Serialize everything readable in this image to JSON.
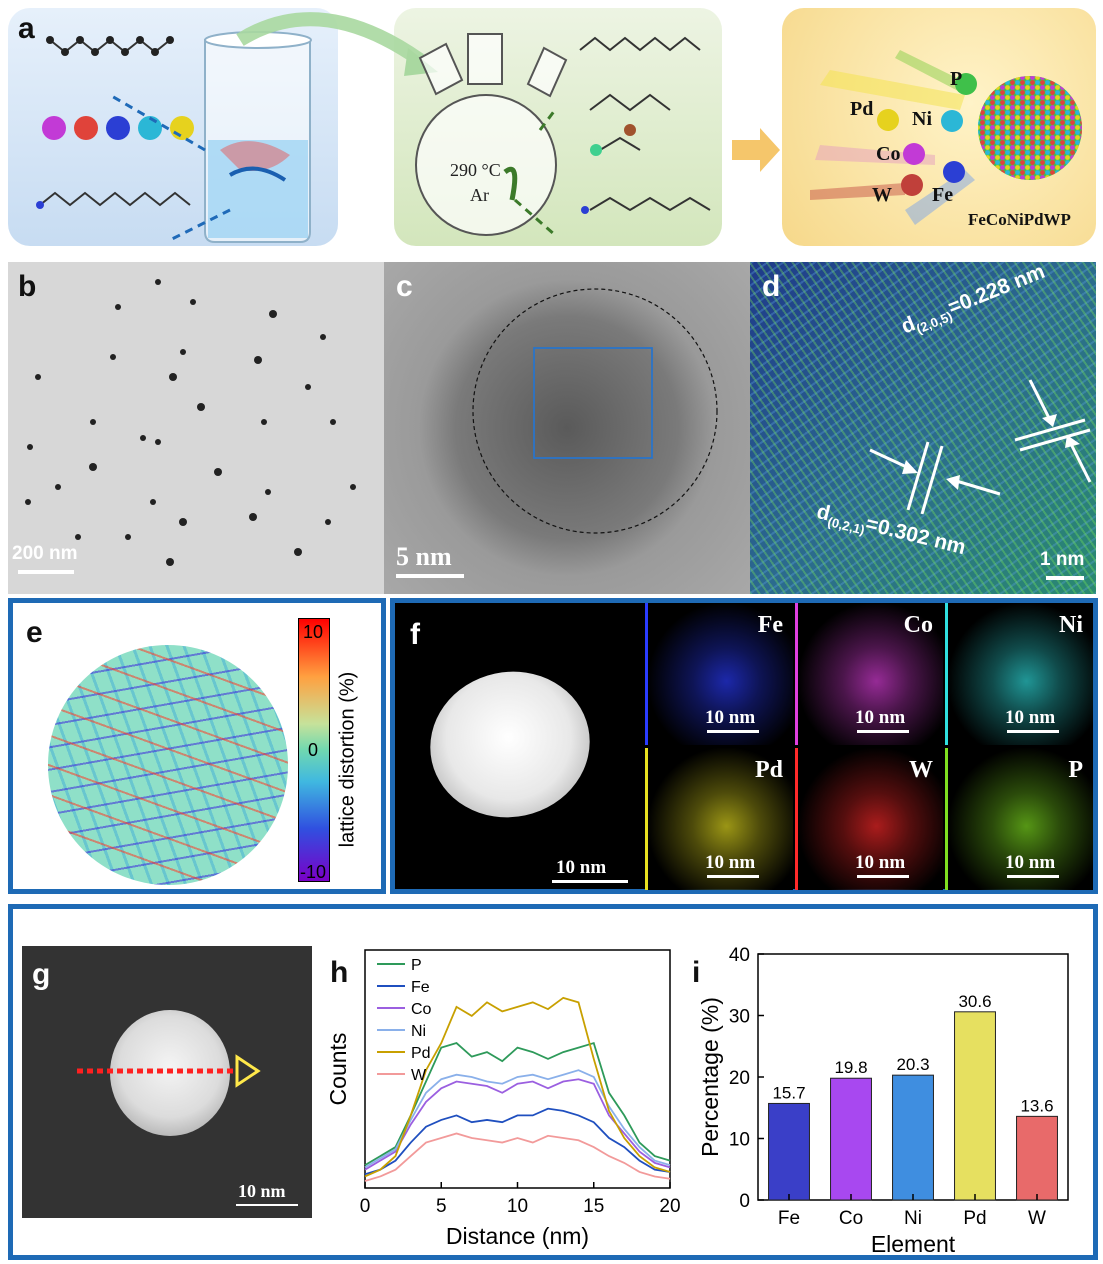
{
  "panel_labels": {
    "a": "a",
    "b": "b",
    "c": "c",
    "d": "d",
    "e": "e",
    "f": "f",
    "g": "g",
    "h": "h",
    "i": "i"
  },
  "panel_a": {
    "condition_temp": "290 °C",
    "condition_gas": "Ar",
    "product_label": "FeCoNiPdWP",
    "element_labels": {
      "P": "P",
      "Pd": "Pd",
      "Ni": "Ni",
      "Co": "Co",
      "W": "W",
      "Fe": "Fe"
    },
    "colors": {
      "beaker_bg": "#cfe3f5",
      "flask_bg": "#dcecc9",
      "product_bg": "#fbe3a5",
      "arrow": "#f5c66b"
    }
  },
  "panel_b": {
    "scale": "200 nm"
  },
  "panel_c": {
    "scale": "5 nm"
  },
  "panel_d": {
    "d1_main": "d",
    "d1_sub": "(2,0,5)",
    "d1_val": "=0.228 nm",
    "d2_main": "d",
    "d2_sub": "(0,2,1)",
    "d2_val": "=0.302 nm",
    "scale": "1 nm"
  },
  "panel_e": {
    "colorbar_max": "10",
    "colorbar_mid": "0",
    "colorbar_min": "-10",
    "colorbar_label": "lattice distortion (%)"
  },
  "panel_f": {
    "haadf_scale": "10 nm",
    "maps": [
      {
        "element": "Fe",
        "scale": "10 nm",
        "color": "#2a3cff"
      },
      {
        "element": "Co",
        "scale": "10 nm",
        "color": "#e040e0"
      },
      {
        "element": "Ni",
        "scale": "10 nm",
        "color": "#30e0e0"
      },
      {
        "element": "Pd",
        "scale": "10 nm",
        "color": "#e8e020"
      },
      {
        "element": "W",
        "scale": "10 nm",
        "color": "#ff2a2a"
      },
      {
        "element": "P",
        "scale": "10 nm",
        "color": "#80e020"
      }
    ]
  },
  "panel_g": {
    "scale": "10 nm"
  },
  "chart_data": [
    {
      "panel": "h",
      "type": "line",
      "xlabel": "Distance (nm)",
      "ylabel": "Counts",
      "xlim": [
        0,
        20
      ],
      "xticks": [
        "0",
        "5",
        "10",
        "15",
        "20"
      ],
      "legend_position": "top-left",
      "x": [
        0,
        1,
        2,
        3,
        4,
        5,
        6,
        7,
        8,
        9,
        10,
        11,
        12,
        13,
        14,
        15,
        16,
        17,
        18,
        19,
        20
      ],
      "series": [
        {
          "name": "P",
          "color": "#2e9a5a",
          "values": [
            0.08,
            0.12,
            0.16,
            0.3,
            0.45,
            0.6,
            0.62,
            0.56,
            0.58,
            0.54,
            0.6,
            0.58,
            0.55,
            0.58,
            0.6,
            0.62,
            0.4,
            0.3,
            0.18,
            0.12,
            0.1
          ]
        },
        {
          "name": "Fe",
          "color": "#1f4fbf",
          "values": [
            0.04,
            0.06,
            0.1,
            0.18,
            0.25,
            0.28,
            0.3,
            0.27,
            0.28,
            0.27,
            0.3,
            0.3,
            0.33,
            0.32,
            0.3,
            0.27,
            0.2,
            0.16,
            0.1,
            0.06,
            0.05
          ]
        },
        {
          "name": "Co",
          "color": "#9b5fe0",
          "values": [
            0.06,
            0.1,
            0.14,
            0.26,
            0.36,
            0.42,
            0.45,
            0.44,
            0.43,
            0.4,
            0.44,
            0.45,
            0.42,
            0.45,
            0.46,
            0.44,
            0.3,
            0.22,
            0.14,
            0.09,
            0.07
          ]
        },
        {
          "name": "Ni",
          "color": "#8ab0ea",
          "values": [
            0.07,
            0.11,
            0.15,
            0.28,
            0.4,
            0.46,
            0.48,
            0.47,
            0.45,
            0.44,
            0.47,
            0.48,
            0.46,
            0.48,
            0.5,
            0.47,
            0.34,
            0.24,
            0.16,
            0.1,
            0.08
          ]
        },
        {
          "name": "Pd",
          "color": "#c8a000",
          "values": [
            0.03,
            0.06,
            0.12,
            0.3,
            0.5,
            0.62,
            0.78,
            0.74,
            0.8,
            0.76,
            0.78,
            0.8,
            0.77,
            0.82,
            0.8,
            0.55,
            0.32,
            0.2,
            0.12,
            0.07,
            0.05
          ]
        },
        {
          "name": "W",
          "color": "#f29a9a",
          "values": [
            0.01,
            0.03,
            0.06,
            0.12,
            0.18,
            0.2,
            0.22,
            0.2,
            0.19,
            0.18,
            0.2,
            0.18,
            0.21,
            0.2,
            0.19,
            0.16,
            0.12,
            0.09,
            0.05,
            0.03,
            0.02
          ]
        }
      ]
    },
    {
      "panel": "i",
      "type": "bar",
      "xlabel": "Element",
      "ylabel": "Percentage (%)",
      "ylim": [
        0,
        40
      ],
      "yticks": [
        "0",
        "10",
        "20",
        "30",
        "40"
      ],
      "categories": [
        "Fe",
        "Co",
        "Ni",
        "Pd",
        "W"
      ],
      "values": [
        15.7,
        19.8,
        20.3,
        30.6,
        13.6
      ],
      "value_labels": [
        "15.7",
        "19.8",
        "20.3",
        "30.6",
        "13.6"
      ],
      "colors": [
        "#3a3fc8",
        "#a848f0",
        "#3f8ee0",
        "#e6e060",
        "#e86a6a"
      ]
    }
  ]
}
